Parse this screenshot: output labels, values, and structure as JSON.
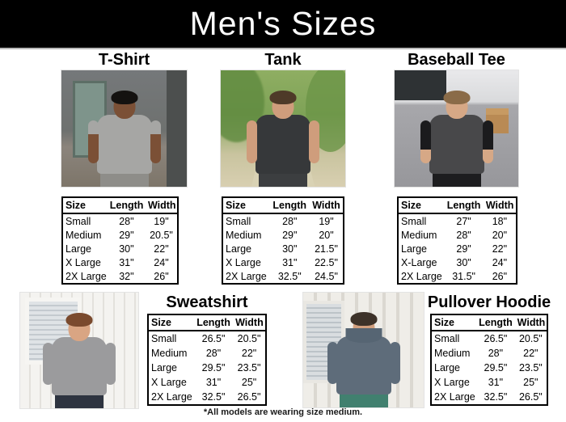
{
  "banner": {
    "title": "Men's Sizes"
  },
  "footnote": "*All models are wearing size medium.",
  "columns": {
    "size": "Size",
    "length": "Length",
    "width": "Width"
  },
  "colors": {
    "banner_bg": "#000000",
    "banner_fg": "#ffffff",
    "table_border": "#000000"
  },
  "products": [
    {
      "name": "T-Shirt",
      "photo_alt": "man in heather gray t-shirt, industrial backdrop",
      "rows": [
        [
          "Small",
          "28\"",
          "19\""
        ],
        [
          "Medium",
          "29\"",
          "20.5\""
        ],
        [
          "Large",
          "30\"",
          "22\""
        ],
        [
          "X Large",
          "31\"",
          "24\""
        ],
        [
          "2X Large",
          "32\"",
          "26\""
        ]
      ]
    },
    {
      "name": "Tank",
      "photo_alt": "man in dark gray tank top on a tree-lined path",
      "rows": [
        [
          "Small",
          "28\"",
          "19\""
        ],
        [
          "Medium",
          "29\"",
          "20\""
        ],
        [
          "Large",
          "30\"",
          "21.5\""
        ],
        [
          "X Large",
          "31\"",
          "22.5\""
        ],
        [
          "2X Large",
          "32.5\"",
          "24.5\""
        ]
      ]
    },
    {
      "name": "Baseball Tee",
      "photo_alt": "man in charcoal raglan tee with black sleeves in a parking lot",
      "rows": [
        [
          "Small",
          "27\"",
          "18\""
        ],
        [
          "Medium",
          "28\"",
          "20\""
        ],
        [
          "Large",
          "29\"",
          "22\""
        ],
        [
          "X-Large",
          "30\"",
          "24\""
        ],
        [
          "2X Large",
          "31.5\"",
          "26\""
        ]
      ]
    },
    {
      "name": "Sweatshirt",
      "photo_alt": "man in gray crewneck sweatshirt by white siding wall",
      "rows": [
        [
          "Small",
          "26.5\"",
          "20.5\""
        ],
        [
          "Medium",
          "28\"",
          "22\""
        ],
        [
          "Large",
          "29.5\"",
          "23.5\""
        ],
        [
          "X Large",
          "31\"",
          "25\""
        ],
        [
          "2X Large",
          "32.5\"",
          "26.5\""
        ]
      ]
    },
    {
      "name": "Pullover Hoodie",
      "photo_alt": "man in slate blue pullover hoodie leaning on white wall",
      "rows": [
        [
          "Small",
          "26.5\"",
          "20.5\""
        ],
        [
          "Medium",
          "28\"",
          "22\""
        ],
        [
          "Large",
          "29.5\"",
          "23.5\""
        ],
        [
          "X Large",
          "31\"",
          "25\""
        ],
        [
          "2X Large",
          "32.5\"",
          "26.5\""
        ]
      ]
    }
  ]
}
